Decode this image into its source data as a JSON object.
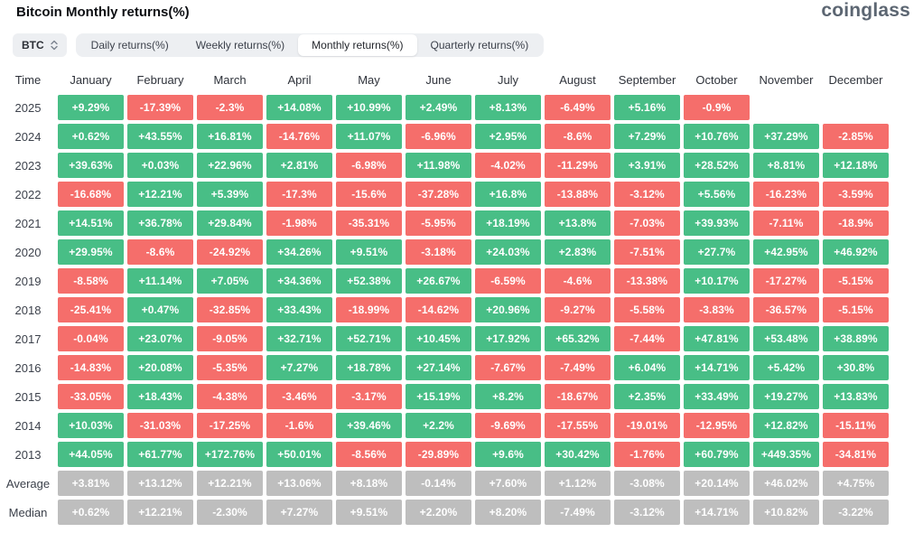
{
  "header": {
    "title": "Bitcoin Monthly returns(%)",
    "logo": "coinglass"
  },
  "controls": {
    "symbol": "BTC",
    "symbol_icon": "updown-arrows-icon",
    "tabs": [
      {
        "label": "Daily returns(%)",
        "active": false
      },
      {
        "label": "Weekly returns(%)",
        "active": false
      },
      {
        "label": "Monthly returns(%)",
        "active": true
      },
      {
        "label": "Quarterly returns(%)",
        "active": false
      }
    ]
  },
  "colors": {
    "positive": "#48be86",
    "negative": "#f56e6b",
    "neutral": "#bebebe"
  },
  "chart_data": {
    "type": "table",
    "title": "Bitcoin Monthly returns(%)",
    "columns": [
      "Time",
      "January",
      "February",
      "March",
      "April",
      "May",
      "June",
      "July",
      "August",
      "September",
      "October",
      "November",
      "December"
    ],
    "rows": [
      {
        "label": "2025",
        "neutral": false,
        "values": [
          "+9.29%",
          "-17.39%",
          "-2.3%",
          "+14.08%",
          "+10.99%",
          "+2.49%",
          "+8.13%",
          "-6.49%",
          "+5.16%",
          "-0.9%",
          "",
          ""
        ]
      },
      {
        "label": "2024",
        "neutral": false,
        "values": [
          "+0.62%",
          "+43.55%",
          "+16.81%",
          "-14.76%",
          "+11.07%",
          "-6.96%",
          "+2.95%",
          "-8.6%",
          "+7.29%",
          "+10.76%",
          "+37.29%",
          "-2.85%"
        ]
      },
      {
        "label": "2023",
        "neutral": false,
        "values": [
          "+39.63%",
          "+0.03%",
          "+22.96%",
          "+2.81%",
          "-6.98%",
          "+11.98%",
          "-4.02%",
          "-11.29%",
          "+3.91%",
          "+28.52%",
          "+8.81%",
          "+12.18%"
        ]
      },
      {
        "label": "2022",
        "neutral": false,
        "values": [
          "-16.68%",
          "+12.21%",
          "+5.39%",
          "-17.3%",
          "-15.6%",
          "-37.28%",
          "+16.8%",
          "-13.88%",
          "-3.12%",
          "+5.56%",
          "-16.23%",
          "-3.59%"
        ]
      },
      {
        "label": "2021",
        "neutral": false,
        "values": [
          "+14.51%",
          "+36.78%",
          "+29.84%",
          "-1.98%",
          "-35.31%",
          "-5.95%",
          "+18.19%",
          "+13.8%",
          "-7.03%",
          "+39.93%",
          "-7.11%",
          "-18.9%"
        ]
      },
      {
        "label": "2020",
        "neutral": false,
        "values": [
          "+29.95%",
          "-8.6%",
          "-24.92%",
          "+34.26%",
          "+9.51%",
          "-3.18%",
          "+24.03%",
          "+2.83%",
          "-7.51%",
          "+27.7%",
          "+42.95%",
          "+46.92%"
        ]
      },
      {
        "label": "2019",
        "neutral": false,
        "values": [
          "-8.58%",
          "+11.14%",
          "+7.05%",
          "+34.36%",
          "+52.38%",
          "+26.67%",
          "-6.59%",
          "-4.6%",
          "-13.38%",
          "+10.17%",
          "-17.27%",
          "-5.15%"
        ]
      },
      {
        "label": "2018",
        "neutral": false,
        "values": [
          "-25.41%",
          "+0.47%",
          "-32.85%",
          "+33.43%",
          "-18.99%",
          "-14.62%",
          "+20.96%",
          "-9.27%",
          "-5.58%",
          "-3.83%",
          "-36.57%",
          "-5.15%"
        ]
      },
      {
        "label": "2017",
        "neutral": false,
        "values": [
          "-0.04%",
          "+23.07%",
          "-9.05%",
          "+32.71%",
          "+52.71%",
          "+10.45%",
          "+17.92%",
          "+65.32%",
          "-7.44%",
          "+47.81%",
          "+53.48%",
          "+38.89%"
        ]
      },
      {
        "label": "2016",
        "neutral": false,
        "values": [
          "-14.83%",
          "+20.08%",
          "-5.35%",
          "+7.27%",
          "+18.78%",
          "+27.14%",
          "-7.67%",
          "-7.49%",
          "+6.04%",
          "+14.71%",
          "+5.42%",
          "+30.8%"
        ]
      },
      {
        "label": "2015",
        "neutral": false,
        "values": [
          "-33.05%",
          "+18.43%",
          "-4.38%",
          "-3.46%",
          "-3.17%",
          "+15.19%",
          "+8.2%",
          "-18.67%",
          "+2.35%",
          "+33.49%",
          "+19.27%",
          "+13.83%"
        ]
      },
      {
        "label": "2014",
        "neutral": false,
        "values": [
          "+10.03%",
          "-31.03%",
          "-17.25%",
          "-1.6%",
          "+39.46%",
          "+2.2%",
          "-9.69%",
          "-17.55%",
          "-19.01%",
          "-12.95%",
          "+12.82%",
          "-15.11%"
        ]
      },
      {
        "label": "2013",
        "neutral": false,
        "values": [
          "+44.05%",
          "+61.77%",
          "+172.76%",
          "+50.01%",
          "-8.56%",
          "-29.89%",
          "+9.6%",
          "+30.42%",
          "-1.76%",
          "+60.79%",
          "+449.35%",
          "-34.81%"
        ]
      },
      {
        "label": "Average",
        "neutral": true,
        "values": [
          "+3.81%",
          "+13.12%",
          "+12.21%",
          "+13.06%",
          "+8.18%",
          "-0.14%",
          "+7.60%",
          "+1.12%",
          "-3.08%",
          "+20.14%",
          "+46.02%",
          "+4.75%"
        ]
      },
      {
        "label": "Median",
        "neutral": true,
        "values": [
          "+0.62%",
          "+12.21%",
          "-2.30%",
          "+7.27%",
          "+9.51%",
          "+2.20%",
          "+8.20%",
          "-7.49%",
          "-3.12%",
          "+14.71%",
          "+10.82%",
          "-3.22%"
        ]
      }
    ]
  }
}
